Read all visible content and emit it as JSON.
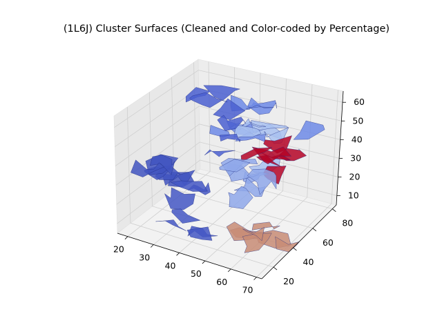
{
  "chart_data": {
    "type": "surface3d",
    "title": "(1L6J) Cluster Surfaces (Cleaned and Color-coded by Percentage)",
    "xlabel": "",
    "ylabel": "",
    "zlabel": "",
    "x_ticks": [
      20,
      30,
      40,
      50,
      60,
      70
    ],
    "y_ticks": [
      20,
      40,
      60,
      80
    ],
    "z_ticks": [
      10,
      20,
      30,
      40,
      50,
      60
    ],
    "xlim": [
      16,
      72
    ],
    "ylim": [
      8,
      84
    ],
    "zlim": [
      5,
      66
    ],
    "grid": true,
    "colormap": "coolwarm",
    "clusters": [
      {
        "color": "#4154c0",
        "x": [
          18,
          34
        ],
        "y": [
          28,
          58
        ],
        "z": [
          20,
          34
        ]
      },
      {
        "color": "#4457c4",
        "x": [
          30,
          48
        ],
        "y": [
          10,
          40
        ],
        "z": [
          6,
          30
        ]
      },
      {
        "color": "#6d8ae6",
        "x": [
          40,
          70
        ],
        "y": [
          30,
          62
        ],
        "z": [
          52,
          66
        ]
      },
      {
        "color": "#a9c1f0",
        "x": [
          42,
          68
        ],
        "y": [
          40,
          70
        ],
        "z": [
          40,
          54
        ]
      },
      {
        "color": "#b40426",
        "x": [
          54,
          68
        ],
        "y": [
          40,
          56
        ],
        "z": [
          38,
          46
        ]
      },
      {
        "color": "#c88c76",
        "x": [
          58,
          72
        ],
        "y": [
          18,
          40
        ],
        "z": [
          8,
          20
        ]
      },
      {
        "color": "#8fa8ea",
        "x": [
          34,
          56
        ],
        "y": [
          40,
          70
        ],
        "z": [
          22,
          36
        ]
      },
      {
        "color": "#4a5fd0",
        "x": [
          20,
          36
        ],
        "y": [
          52,
          76
        ],
        "z": [
          32,
          62
        ]
      }
    ]
  }
}
